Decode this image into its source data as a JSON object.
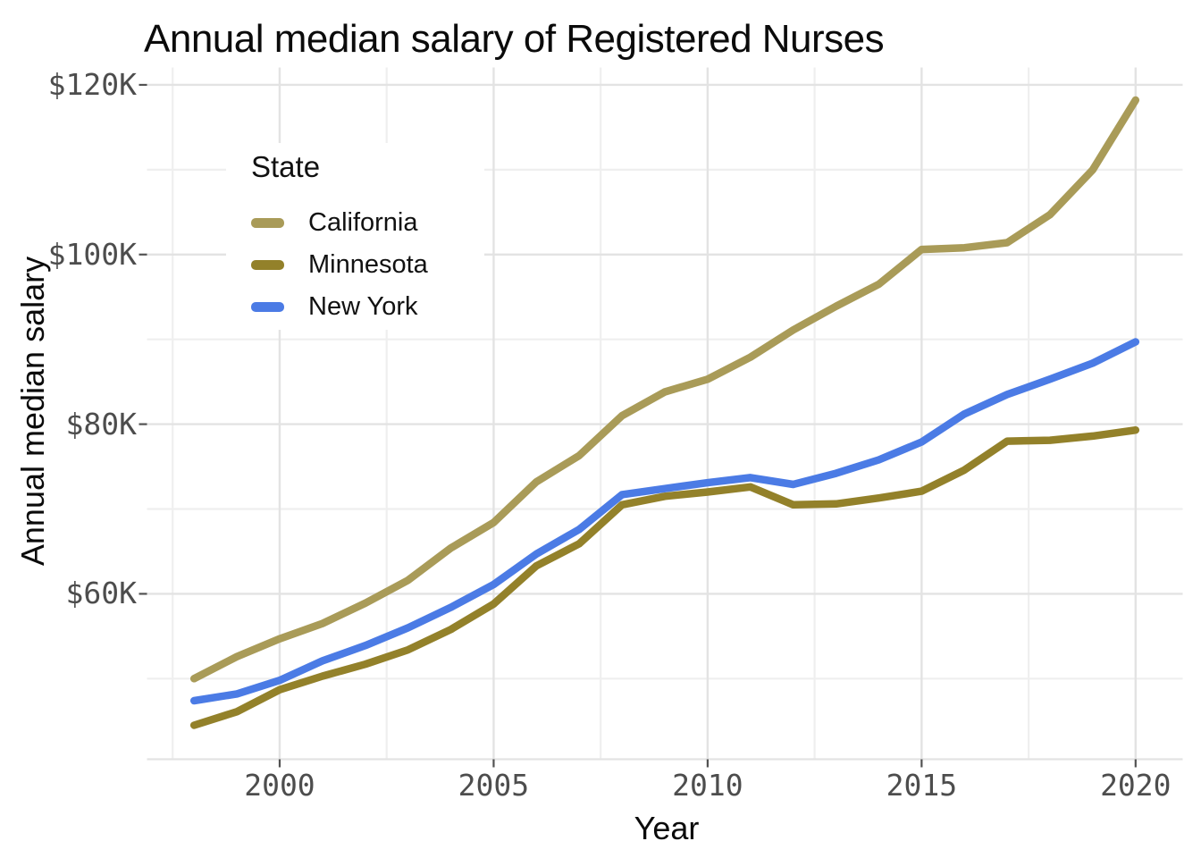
{
  "chart_data": {
    "type": "line",
    "title": "Annual median salary of Registered Nurses",
    "xlabel": "Year",
    "ylabel": "Annual median salary",
    "unit": "USD thousands",
    "x": [
      1998,
      1999,
      2000,
      2001,
      2002,
      2003,
      2004,
      2005,
      2006,
      2007,
      2008,
      2009,
      2010,
      2011,
      2012,
      2013,
      2014,
      2015,
      2016,
      2017,
      2018,
      2019,
      2020
    ],
    "series": [
      {
        "name": "California",
        "color": "#A99B58",
        "values": [
          50.0,
          52.6,
          54.7,
          56.5,
          58.9,
          61.6,
          65.4,
          68.4,
          73.2,
          76.3,
          81.0,
          83.8,
          85.3,
          87.9,
          91.1,
          93.9,
          96.5,
          100.6,
          100.8,
          101.4,
          104.7,
          110.0,
          118.2
        ]
      },
      {
        "name": "Minnesota",
        "color": "#93812A",
        "values": [
          44.5,
          46.1,
          48.7,
          50.3,
          51.7,
          53.4,
          55.8,
          58.8,
          63.3,
          65.9,
          70.5,
          71.5,
          72.0,
          72.6,
          70.5,
          70.6,
          71.3,
          72.1,
          74.6,
          78.0,
          78.1,
          78.6,
          79.3
        ]
      },
      {
        "name": "New York",
        "color": "#4B7BE5",
        "values": [
          47.4,
          48.2,
          49.8,
          52.1,
          53.9,
          56.0,
          58.4,
          61.1,
          64.7,
          67.6,
          71.7,
          72.4,
          73.1,
          73.7,
          72.9,
          74.2,
          75.8,
          77.9,
          81.2,
          83.5,
          85.3,
          87.2,
          89.7
        ]
      }
    ],
    "legend": {
      "title": "State",
      "position": "inside-top-left"
    },
    "xlim": [
      1996.9,
      2021.1
    ],
    "ylim": [
      40.5,
      122.05
    ],
    "x_ticks": [
      {
        "v": 2000,
        "label": "2000"
      },
      {
        "v": 2005,
        "label": "2005"
      },
      {
        "v": 2010,
        "label": "2010"
      },
      {
        "v": 2015,
        "label": "2015"
      },
      {
        "v": 2020,
        "label": "2020"
      }
    ],
    "y_ticks": [
      {
        "v": 120,
        "label": "$120K"
      },
      {
        "v": 100,
        "label": "$100K"
      },
      {
        "v": 80,
        "label": "$80K"
      },
      {
        "v": 60,
        "label": "$60K"
      }
    ],
    "x_minor": [
      1997.5,
      2002.5,
      2007.5,
      2012.5,
      2017.5
    ],
    "y_minor": [
      110,
      90,
      70,
      50
    ],
    "grid": true,
    "colors": {
      "background": "#FFFFFF",
      "grid_major": "#E3E3E3",
      "grid_minor": "#EFEFEF",
      "tick_mark": "#525252",
      "tick_label": "#4D4D4D",
      "text": "#0B0B0B"
    }
  }
}
